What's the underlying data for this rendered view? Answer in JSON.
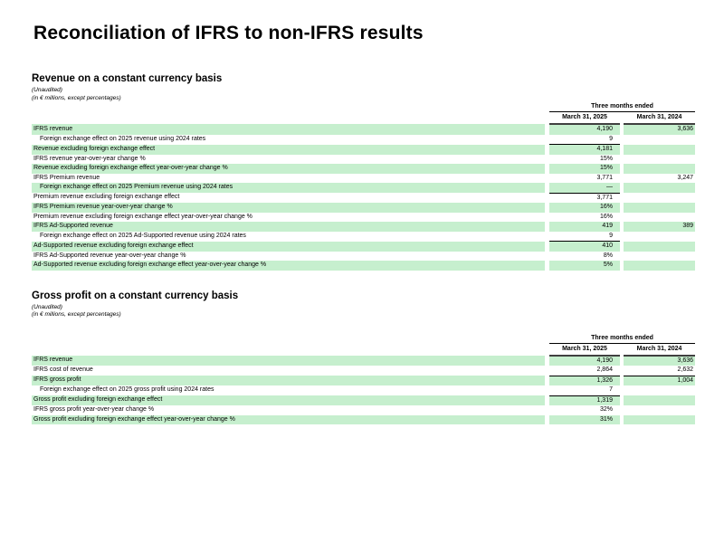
{
  "page": {
    "title": "Reconciliation of IFRS to non-IFRS results",
    "shaded_row_color": "#c6efce"
  },
  "sections": [
    {
      "heading": "Revenue on a constant currency basis",
      "unaudited_note": "(Unaudited)",
      "units_note": "(in € millions, except percentages)",
      "table": {
        "period_header": "Three months ended",
        "columns": [
          "March 31, 2025",
          "March 31, 2024"
        ],
        "rows": [
          {
            "label": "IFRS revenue",
            "v2025": "4,190",
            "v2024": "3,636",
            "shaded": true,
            "indent": false,
            "underline_2025": false,
            "underline_2024": false
          },
          {
            "label": "Foreign exchange effect on 2025 revenue using 2024 rates",
            "v2025": "9",
            "v2024": "",
            "shaded": false,
            "indent": true,
            "underline_2025": true,
            "underline_2024": false
          },
          {
            "label": "Revenue excluding foreign exchange effect",
            "v2025": "4,181",
            "v2024": "",
            "shaded": true,
            "indent": false,
            "underline_2025": false,
            "underline_2024": false
          },
          {
            "label": "IFRS revenue year-over-year change %",
            "v2025": "15%",
            "v2024": "",
            "shaded": false,
            "indent": false,
            "underline_2025": false,
            "underline_2024": false
          },
          {
            "label": "Revenue excluding foreign exchange effect year-over-year change %",
            "v2025": "15%",
            "v2024": "",
            "shaded": true,
            "indent": false,
            "underline_2025": false,
            "underline_2024": false
          },
          {
            "label": "IFRS Premium revenue",
            "v2025": "3,771",
            "v2024": "3,247",
            "shaded": false,
            "indent": false,
            "underline_2025": false,
            "underline_2024": false
          },
          {
            "label": "Foreign exchange effect on 2025 Premium revenue using 2024 rates",
            "v2025": "—",
            "v2024": "",
            "shaded": true,
            "indent": true,
            "underline_2025": true,
            "underline_2024": false
          },
          {
            "label": "Premium revenue excluding foreign exchange effect",
            "v2025": "3,771",
            "v2024": "",
            "shaded": false,
            "indent": false,
            "underline_2025": false,
            "underline_2024": false
          },
          {
            "label": "IFRS Premium revenue year-over-year change %",
            "v2025": "16%",
            "v2024": "",
            "shaded": true,
            "indent": false,
            "underline_2025": false,
            "underline_2024": false
          },
          {
            "label": "Premium revenue excluding foreign exchange effect year-over-year change %",
            "v2025": "16%",
            "v2024": "",
            "shaded": false,
            "indent": false,
            "underline_2025": false,
            "underline_2024": false
          },
          {
            "label": "IFRS Ad-Supported revenue",
            "v2025": "419",
            "v2024": "389",
            "shaded": true,
            "indent": false,
            "underline_2025": false,
            "underline_2024": false
          },
          {
            "label": "Foreign exchange effect on 2025 Ad-Supported revenue using 2024 rates",
            "v2025": "9",
            "v2024": "",
            "shaded": false,
            "indent": true,
            "underline_2025": true,
            "underline_2024": false
          },
          {
            "label": "Ad-Supported revenue excluding foreign exchange effect",
            "v2025": "410",
            "v2024": "",
            "shaded": true,
            "indent": false,
            "underline_2025": false,
            "underline_2024": false
          },
          {
            "label": "IFRS Ad-Supported revenue year-over-year change %",
            "v2025": "8%",
            "v2024": "",
            "shaded": false,
            "indent": false,
            "underline_2025": false,
            "underline_2024": false
          },
          {
            "label": "Ad-Supported revenue excluding foreign exchange effect year-over-year change %",
            "v2025": "5%",
            "v2024": "",
            "shaded": true,
            "indent": false,
            "underline_2025": false,
            "underline_2024": false
          }
        ]
      }
    },
    {
      "heading": "Gross profit on a constant currency basis",
      "unaudited_note": "(Unaudited)",
      "units_note": "(in € millions, except percentages)",
      "table": {
        "period_header": "Three months ended",
        "columns": [
          "March 31, 2025",
          "March 31, 2024"
        ],
        "rows": [
          {
            "label": "IFRS revenue",
            "v2025": "4,190",
            "v2024": "3,636",
            "shaded": true,
            "indent": false,
            "underline_2025": false,
            "underline_2024": false
          },
          {
            "label": "IFRS cost of revenue",
            "v2025": "2,864",
            "v2024": "2,632",
            "shaded": false,
            "indent": false,
            "underline_2025": true,
            "underline_2024": true
          },
          {
            "label": "IFRS gross profit",
            "v2025": "1,326",
            "v2024": "1,004",
            "shaded": true,
            "indent": false,
            "underline_2025": false,
            "underline_2024": false
          },
          {
            "label": "Foreign exchange effect on 2025 gross profit using 2024 rates",
            "v2025": "7",
            "v2024": "",
            "shaded": false,
            "indent": true,
            "underline_2025": true,
            "underline_2024": false
          },
          {
            "label": "Gross profit excluding foreign exchange effect",
            "v2025": "1,319",
            "v2024": "",
            "shaded": true,
            "indent": false,
            "underline_2025": false,
            "underline_2024": false
          },
          {
            "label": "IFRS gross profit year-over-year change %",
            "v2025": "32%",
            "v2024": "",
            "shaded": false,
            "indent": false,
            "underline_2025": false,
            "underline_2024": false
          },
          {
            "label": "Gross profit excluding foreign exchange effect year-over-year change %",
            "v2025": "31%",
            "v2024": "",
            "shaded": true,
            "indent": false,
            "underline_2025": false,
            "underline_2024": false
          }
        ]
      }
    }
  ]
}
